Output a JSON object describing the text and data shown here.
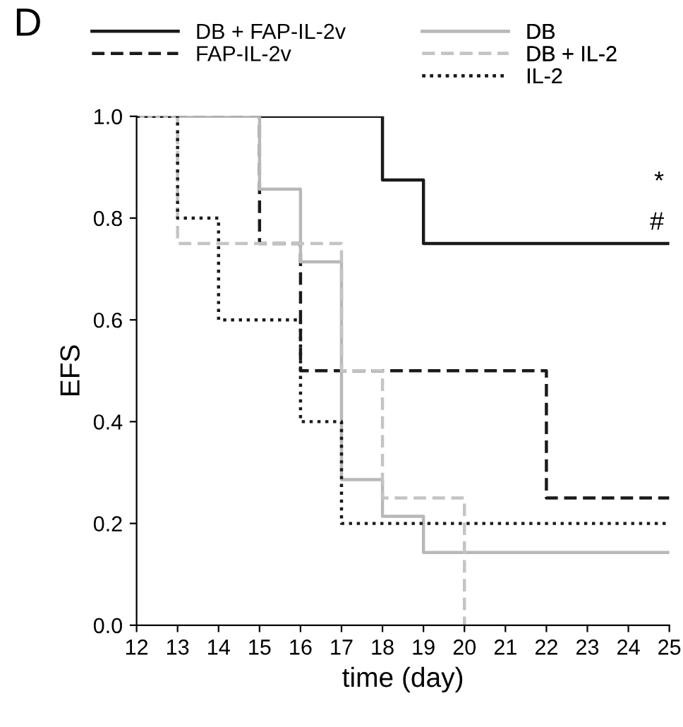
{
  "chart_data": {
    "type": "step",
    "xlabel": "time (day)",
    "ylabel": "EFS",
    "series": [
      {
        "name": "DB + FAP-IL-2v",
        "color": "#1a1a1a",
        "line_style": "solid",
        "x": [
          12,
          18,
          19,
          25
        ],
        "values": [
          1.0,
          0.875,
          0.75,
          0.75
        ]
      },
      {
        "name": "FAP-IL-2v",
        "color": "#1a1a1a",
        "line_style": "dashed",
        "x": [
          12,
          15,
          16,
          22,
          25
        ],
        "values": [
          1.0,
          0.75,
          0.5,
          0.25,
          0.25
        ]
      },
      {
        "name": "DB",
        "color": "#b8b8b8",
        "line_style": "solid",
        "x": [
          12,
          15,
          16,
          17,
          18,
          19,
          25
        ],
        "values": [
          1.0,
          0.857,
          0.714,
          0.286,
          0.214,
          0.143,
          0.143
        ]
      },
      {
        "name": "DB + IL-2",
        "color": "#c4c4c4",
        "line_style": "dashed",
        "x": [
          12,
          13,
          17,
          18,
          20
        ],
        "values": [
          1.0,
          0.75,
          0.5,
          0.25,
          0.0
        ]
      },
      {
        "name": "IL-2",
        "color": "#1a1a1a",
        "line_style": "dotted",
        "x": [
          12,
          13,
          14,
          16,
          17,
          25
        ],
        "values": [
          1.0,
          0.8,
          0.6,
          0.4,
          0.2,
          0.2
        ]
      }
    ],
    "xlim": [
      12,
      25
    ],
    "xticks": [
      12,
      13,
      14,
      15,
      16,
      17,
      18,
      19,
      20,
      21,
      22,
      23,
      24,
      25
    ],
    "ylim": [
      0,
      1.0
    ],
    "yticks": [
      {
        "value": 0,
        "label": "0.0"
      },
      {
        "value": 0.2,
        "label": "0.2"
      },
      {
        "value": 0.4,
        "label": "0.4"
      },
      {
        "value": 0.6,
        "label": "0.6"
      },
      {
        "value": 0.8,
        "label": "0.8"
      },
      {
        "value": 1.0,
        "label": "1.0"
      }
    ],
    "grid": false,
    "legend": "top",
    "annotations": [
      "*",
      "#",
      "D"
    ]
  }
}
